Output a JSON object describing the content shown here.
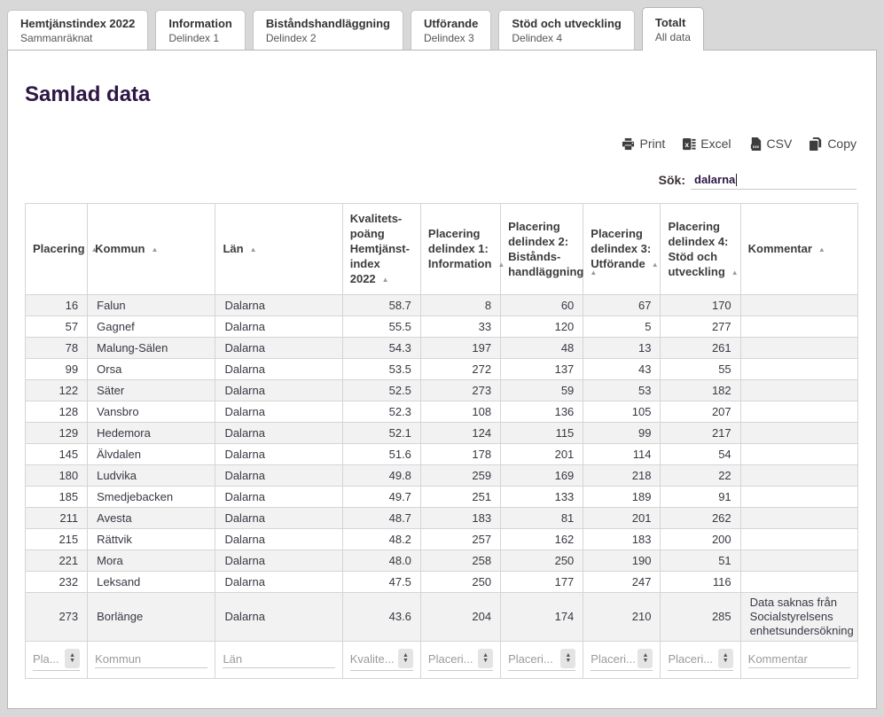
{
  "tabs": [
    {
      "title": "Hemtjänstindex 2022",
      "subtitle": "Sammanräknat",
      "active": false
    },
    {
      "title": "Information",
      "subtitle": "Delindex 1",
      "active": false
    },
    {
      "title": "Biståndshandläggning",
      "subtitle": "Delindex 2",
      "active": false
    },
    {
      "title": "Utförande",
      "subtitle": "Delindex 3",
      "active": false
    },
    {
      "title": "Stöd och utveckling",
      "subtitle": "Delindex 4",
      "active": false
    },
    {
      "title": "Totalt",
      "subtitle": "All data",
      "active": true
    }
  ],
  "page": {
    "title": "Samlad data"
  },
  "toolbar": {
    "buttons": [
      {
        "label": "Print",
        "icon": "printer-icon"
      },
      {
        "label": "Excel",
        "icon": "excel-icon"
      },
      {
        "label": "CSV",
        "icon": "csv-icon"
      },
      {
        "label": "Copy",
        "icon": "copy-icon"
      }
    ]
  },
  "search": {
    "label": "Sök:",
    "value": "dalarna"
  },
  "table": {
    "columns": [
      {
        "header": "Placering",
        "align": "right",
        "filter": "Pla...",
        "spinner": true,
        "width": 70
      },
      {
        "header": "Kommun",
        "align": "left",
        "filter": "Kommun",
        "spinner": false,
        "width": 144
      },
      {
        "header": "Län",
        "align": "left",
        "filter": "Län",
        "spinner": false,
        "width": 143
      },
      {
        "header": "Kvalitets-poäng Hemtjänst-index 2022",
        "align": "right",
        "filter": "Kvalite...",
        "spinner": true,
        "width": 88
      },
      {
        "header": "Placering delindex 1: Information",
        "align": "right",
        "filter": "Placeri...",
        "spinner": true,
        "width": 90
      },
      {
        "header": "Placering delindex 2: Bistånds-handläggning",
        "align": "right",
        "filter": "Placeri...",
        "spinner": true,
        "width": 93
      },
      {
        "header": "Placering delindex 3: Utförande",
        "align": "right",
        "filter": "Placeri...",
        "spinner": true,
        "width": 87
      },
      {
        "header": "Placering delindex 4: Stöd och utveckling",
        "align": "right",
        "filter": "Placeri...",
        "spinner": true,
        "width": 90
      },
      {
        "header": "Kommentar",
        "align": "left",
        "filter": "Kommentar",
        "spinner": false,
        "width": 132
      }
    ],
    "rows": [
      [
        "16",
        "Falun",
        "Dalarna",
        "58.7",
        "8",
        "60",
        "67",
        "170",
        ""
      ],
      [
        "57",
        "Gagnef",
        "Dalarna",
        "55.5",
        "33",
        "120",
        "5",
        "277",
        ""
      ],
      [
        "78",
        "Malung-Sälen",
        "Dalarna",
        "54.3",
        "197",
        "48",
        "13",
        "261",
        ""
      ],
      [
        "99",
        "Orsa",
        "Dalarna",
        "53.5",
        "272",
        "137",
        "43",
        "55",
        ""
      ],
      [
        "122",
        "Säter",
        "Dalarna",
        "52.5",
        "273",
        "59",
        "53",
        "182",
        ""
      ],
      [
        "128",
        "Vansbro",
        "Dalarna",
        "52.3",
        "108",
        "136",
        "105",
        "207",
        ""
      ],
      [
        "129",
        "Hedemora",
        "Dalarna",
        "52.1",
        "124",
        "115",
        "99",
        "217",
        ""
      ],
      [
        "145",
        "Älvdalen",
        "Dalarna",
        "51.6",
        "178",
        "201",
        "114",
        "54",
        ""
      ],
      [
        "180",
        "Ludvika",
        "Dalarna",
        "49.8",
        "259",
        "169",
        "218",
        "22",
        ""
      ],
      [
        "185",
        "Smedjebacken",
        "Dalarna",
        "49.7",
        "251",
        "133",
        "189",
        "91",
        ""
      ],
      [
        "211",
        "Avesta",
        "Dalarna",
        "48.7",
        "183",
        "81",
        "201",
        "262",
        ""
      ],
      [
        "215",
        "Rättvik",
        "Dalarna",
        "48.2",
        "257",
        "162",
        "183",
        "200",
        ""
      ],
      [
        "221",
        "Mora",
        "Dalarna",
        "48.0",
        "258",
        "250",
        "190",
        "51",
        ""
      ],
      [
        "232",
        "Leksand",
        "Dalarna",
        "47.5",
        "250",
        "177",
        "247",
        "116",
        ""
      ],
      [
        "273",
        "Borlänge",
        "Dalarna",
        "43.6",
        "204",
        "174",
        "210",
        "285",
        "Data saknas från Socialstyrelsens enhetsundersökning"
      ]
    ],
    "sort_icon": "▲"
  },
  "colors": {
    "accent": "#2d1745",
    "row_stripe": "#f2f2f2",
    "border": "#d5d5d5",
    "page_background": "#d8d8d8"
  }
}
